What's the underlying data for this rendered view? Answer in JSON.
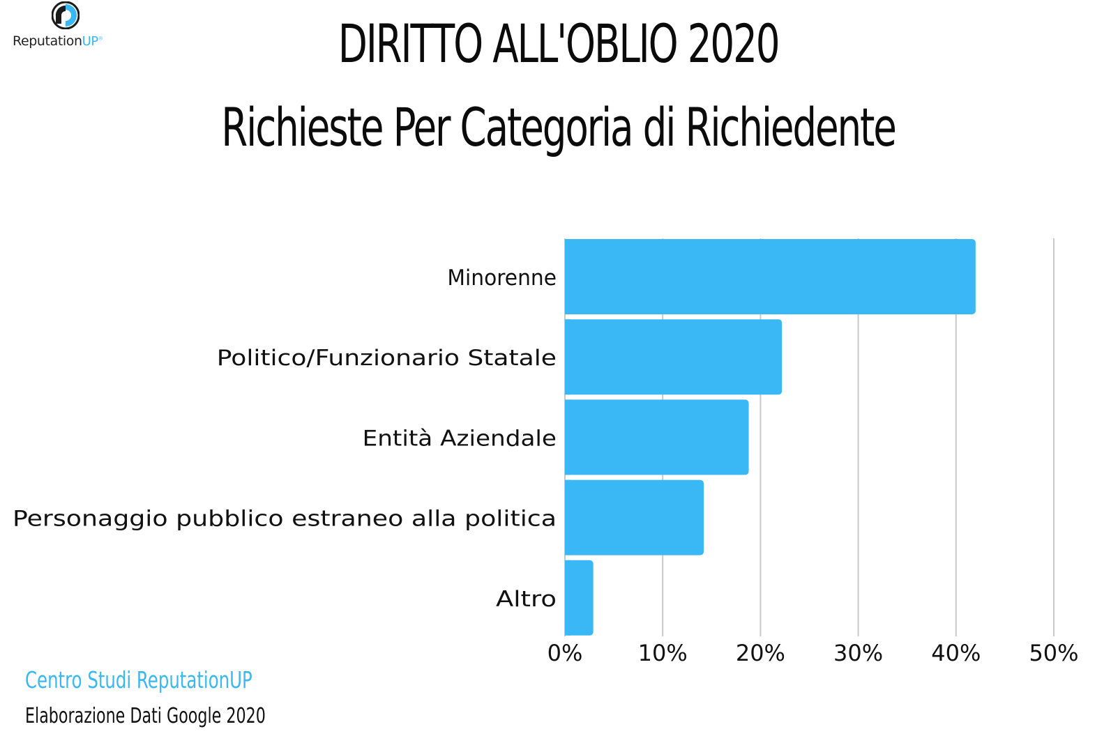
{
  "brand": {
    "name": "Reputation",
    "name_suffix": "UP",
    "trademark": "®",
    "accent_color": "#3ab7f5"
  },
  "title_line1": "DIRITTO ALL'OBLIO 2020",
  "title_line2": "Richieste Per Categoria di Richiedente",
  "chart_data": {
    "type": "bar",
    "orientation": "horizontal",
    "categories": [
      "Minorenne",
      "Politico/Funzionario Statale",
      "Entità Aziendale",
      "Personaggio pubblico estraneo alla politica",
      "Altro"
    ],
    "values": [
      42,
      22.2,
      18.8,
      14.2,
      2.9
    ],
    "xlim": [
      0,
      50
    ],
    "x_ticks": [
      "0%",
      "10%",
      "20%",
      "30%",
      "40%",
      "50%"
    ],
    "grid": true,
    "bar_color": "#3ab7f5",
    "grid_color": "#c8c8c8"
  },
  "footer": {
    "source": "Centro Studi ReputationUP",
    "note": "Elaborazione Dati Google 2020"
  }
}
